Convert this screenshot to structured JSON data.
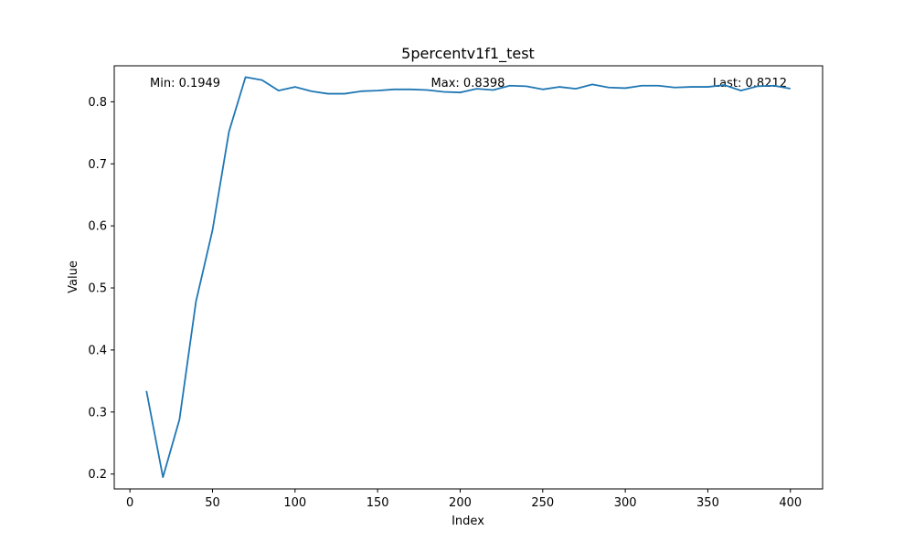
{
  "chart_data": {
    "type": "line",
    "title": "5percentv1f1_test",
    "xlabel": "Index",
    "ylabel": "Value",
    "xlim": [
      -9.5,
      419.5
    ],
    "ylim": [
      0.176,
      0.858
    ],
    "xticks": [
      0,
      50,
      100,
      150,
      200,
      250,
      300,
      350,
      400
    ],
    "yticks": [
      0.2,
      0.3,
      0.4,
      0.5,
      0.6,
      0.7,
      0.8
    ],
    "xtick_labels": [
      "0",
      "50",
      "100",
      "150",
      "200",
      "250",
      "300",
      "350",
      "400"
    ],
    "ytick_labels": [
      "0.2",
      "0.3",
      "0.4",
      "0.5",
      "0.6",
      "0.7",
      "0.8"
    ],
    "grid": false,
    "line_color": "#1f77b4",
    "series": [
      {
        "x": [
          10,
          20,
          30,
          40,
          50,
          60,
          70,
          80,
          90,
          100,
          110,
          120,
          130,
          140,
          150,
          160,
          170,
          180,
          190,
          200,
          210,
          220,
          230,
          240,
          250,
          260,
          270,
          280,
          290,
          300,
          310,
          320,
          330,
          340,
          350,
          360,
          370,
          380,
          390,
          400
        ],
        "values": [
          0.334,
          0.1949,
          0.288,
          0.478,
          0.593,
          0.752,
          0.8398,
          0.835,
          0.818,
          0.824,
          0.817,
          0.813,
          0.813,
          0.817,
          0.818,
          0.82,
          0.82,
          0.819,
          0.816,
          0.815,
          0.821,
          0.819,
          0.826,
          0.825,
          0.82,
          0.824,
          0.821,
          0.828,
          0.823,
          0.822,
          0.826,
          0.826,
          0.823,
          0.824,
          0.824,
          0.827,
          0.818,
          0.825,
          0.826,
          0.8212
        ]
      }
    ],
    "annotations": {
      "min": "Min: 0.1949",
      "max": "Max: 0.8398",
      "last": "Last: 0.8212"
    }
  }
}
